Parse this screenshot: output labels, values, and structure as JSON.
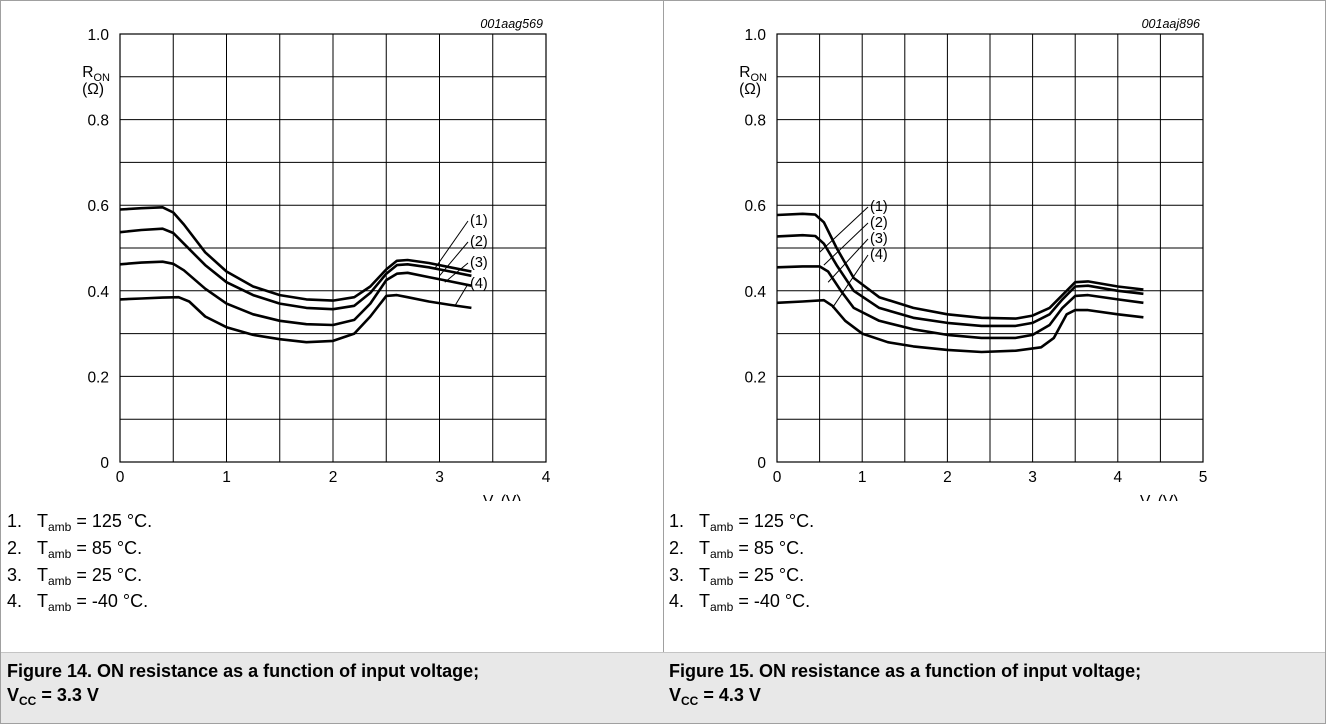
{
  "chart_data": [
    {
      "type": "line",
      "figure_code": "001aag569",
      "ylabel": "R",
      "ylabel_sub": "ON",
      "ylabel_unit": "(Ω)",
      "xlabel": "V",
      "xlabel_sub": "I",
      "xlabel_unit": "(V)",
      "xlim": [
        0,
        4
      ],
      "ylim": [
        0,
        1.0
      ],
      "xticks": [
        "0",
        "1",
        "2",
        "3",
        "4"
      ],
      "yticks": [
        "0",
        "0.2",
        "0.4",
        "0.6",
        "0.8",
        "1.0"
      ],
      "grid": true,
      "series": [
        {
          "name": "(1)",
          "points": [
            [
              0,
              0.59
            ],
            [
              0.2,
              0.593
            ],
            [
              0.4,
              0.595
            ],
            [
              0.5,
              0.583
            ],
            [
              0.6,
              0.555
            ],
            [
              0.8,
              0.49
            ],
            [
              1.0,
              0.445
            ],
            [
              1.25,
              0.41
            ],
            [
              1.5,
              0.39
            ],
            [
              1.75,
              0.38
            ],
            [
              2.0,
              0.377
            ],
            [
              2.2,
              0.385
            ],
            [
              2.35,
              0.41
            ],
            [
              2.5,
              0.45
            ],
            [
              2.6,
              0.47
            ],
            [
              2.7,
              0.472
            ],
            [
              2.9,
              0.465
            ],
            [
              3.1,
              0.455
            ],
            [
              3.3,
              0.445
            ]
          ]
        },
        {
          "name": "(2)",
          "points": [
            [
              0,
              0.537
            ],
            [
              0.2,
              0.542
            ],
            [
              0.4,
              0.545
            ],
            [
              0.5,
              0.535
            ],
            [
              0.6,
              0.51
            ],
            [
              0.8,
              0.46
            ],
            [
              1.0,
              0.42
            ],
            [
              1.25,
              0.39
            ],
            [
              1.5,
              0.37
            ],
            [
              1.75,
              0.36
            ],
            [
              2.0,
              0.357
            ],
            [
              2.2,
              0.365
            ],
            [
              2.35,
              0.395
            ],
            [
              2.5,
              0.44
            ],
            [
              2.6,
              0.46
            ],
            [
              2.7,
              0.462
            ],
            [
              2.9,
              0.455
            ],
            [
              3.1,
              0.445
            ],
            [
              3.3,
              0.435
            ]
          ]
        },
        {
          "name": "(3)",
          "points": [
            [
              0,
              0.462
            ],
            [
              0.2,
              0.466
            ],
            [
              0.4,
              0.468
            ],
            [
              0.5,
              0.463
            ],
            [
              0.6,
              0.448
            ],
            [
              0.8,
              0.405
            ],
            [
              1.0,
              0.37
            ],
            [
              1.25,
              0.345
            ],
            [
              1.5,
              0.33
            ],
            [
              1.75,
              0.322
            ],
            [
              2.0,
              0.32
            ],
            [
              2.2,
              0.332
            ],
            [
              2.35,
              0.37
            ],
            [
              2.5,
              0.425
            ],
            [
              2.6,
              0.44
            ],
            [
              2.7,
              0.442
            ],
            [
              2.9,
              0.432
            ],
            [
              3.1,
              0.422
            ],
            [
              3.3,
              0.412
            ]
          ]
        },
        {
          "name": "(4)",
          "points": [
            [
              0,
              0.38
            ],
            [
              0.2,
              0.382
            ],
            [
              0.4,
              0.384
            ],
            [
              0.55,
              0.385
            ],
            [
              0.65,
              0.375
            ],
            [
              0.8,
              0.34
            ],
            [
              1.0,
              0.315
            ],
            [
              1.25,
              0.297
            ],
            [
              1.5,
              0.287
            ],
            [
              1.75,
              0.28
            ],
            [
              2.0,
              0.283
            ],
            [
              2.2,
              0.3
            ],
            [
              2.35,
              0.34
            ],
            [
              2.5,
              0.388
            ],
            [
              2.6,
              0.39
            ],
            [
              2.7,
              0.385
            ],
            [
              2.9,
              0.375
            ],
            [
              3.1,
              0.367
            ],
            [
              3.3,
              0.36
            ]
          ]
        }
      ],
      "labels": [
        {
          "text": "(1)",
          "tip": [
            2.95,
            0.45
          ]
        },
        {
          "text": "(2)",
          "tip": [
            3.0,
            0.435
          ]
        },
        {
          "text": "(3)",
          "tip": [
            3.05,
            0.42
          ]
        },
        {
          "text": "(4)",
          "tip": [
            3.15,
            0.367
          ]
        }
      ],
      "notes": [
        {
          "num": "1.",
          "pre": "T",
          "sub": "amb",
          "post": " = 125 °C."
        },
        {
          "num": "2.",
          "pre": "T",
          "sub": "amb",
          "post": " = 85 °C."
        },
        {
          "num": "3.",
          "pre": "T",
          "sub": "amb",
          "post": " = 25 °C."
        },
        {
          "num": "4.",
          "pre": "T",
          "sub": "amb",
          "post": " = -40 °C."
        }
      ],
      "caption": {
        "line1": "Figure 14.  ON resistance as a function of input voltage;",
        "pre": "V",
        "sub": "CC",
        "post": " = 3.3 V"
      }
    },
    {
      "type": "line",
      "figure_code": "001aaj896",
      "ylabel": "R",
      "ylabel_sub": "ON",
      "ylabel_unit": "(Ω)",
      "xlabel": "V",
      "xlabel_sub": "I",
      "xlabel_unit": "(V)",
      "xlim": [
        0,
        5
      ],
      "ylim": [
        0,
        1.0
      ],
      "xticks": [
        "0",
        "1",
        "2",
        "3",
        "4",
        "5"
      ],
      "yticks": [
        "0",
        "0.2",
        "0.4",
        "0.6",
        "0.8",
        "1.0"
      ],
      "grid": true,
      "series": [
        {
          "name": "(1)",
          "points": [
            [
              0,
              0.577
            ],
            [
              0.3,
              0.58
            ],
            [
              0.45,
              0.578
            ],
            [
              0.55,
              0.56
            ],
            [
              0.7,
              0.5
            ],
            [
              0.9,
              0.43
            ],
            [
              1.2,
              0.385
            ],
            [
              1.6,
              0.36
            ],
            [
              2.0,
              0.345
            ],
            [
              2.4,
              0.337
            ],
            [
              2.8,
              0.335
            ],
            [
              3.0,
              0.342
            ],
            [
              3.2,
              0.36
            ],
            [
              3.35,
              0.39
            ],
            [
              3.5,
              0.42
            ],
            [
              3.65,
              0.422
            ],
            [
              4.0,
              0.41
            ],
            [
              4.3,
              0.403
            ]
          ]
        },
        {
          "name": "(2)",
          "points": [
            [
              0,
              0.527
            ],
            [
              0.3,
              0.53
            ],
            [
              0.45,
              0.528
            ],
            [
              0.55,
              0.51
            ],
            [
              0.7,
              0.46
            ],
            [
              0.9,
              0.4
            ],
            [
              1.2,
              0.36
            ],
            [
              1.6,
              0.337
            ],
            [
              2.0,
              0.325
            ],
            [
              2.4,
              0.318
            ],
            [
              2.8,
              0.318
            ],
            [
              3.0,
              0.325
            ],
            [
              3.2,
              0.345
            ],
            [
              3.35,
              0.38
            ],
            [
              3.5,
              0.41
            ],
            [
              3.65,
              0.412
            ],
            [
              4.0,
              0.4
            ],
            [
              4.3,
              0.393
            ]
          ]
        },
        {
          "name": "(3)",
          "points": [
            [
              0,
              0.455
            ],
            [
              0.3,
              0.457
            ],
            [
              0.5,
              0.457
            ],
            [
              0.6,
              0.445
            ],
            [
              0.75,
              0.4
            ],
            [
              0.9,
              0.36
            ],
            [
              1.2,
              0.33
            ],
            [
              1.6,
              0.31
            ],
            [
              2.0,
              0.297
            ],
            [
              2.4,
              0.29
            ],
            [
              2.8,
              0.29
            ],
            [
              3.0,
              0.297
            ],
            [
              3.2,
              0.32
            ],
            [
              3.35,
              0.36
            ],
            [
              3.5,
              0.388
            ],
            [
              3.65,
              0.39
            ],
            [
              4.0,
              0.38
            ],
            [
              4.3,
              0.372
            ]
          ]
        },
        {
          "name": "(4)",
          "points": [
            [
              0,
              0.372
            ],
            [
              0.3,
              0.375
            ],
            [
              0.55,
              0.378
            ],
            [
              0.65,
              0.365
            ],
            [
              0.8,
              0.33
            ],
            [
              1.0,
              0.3
            ],
            [
              1.3,
              0.28
            ],
            [
              1.6,
              0.27
            ],
            [
              2.0,
              0.262
            ],
            [
              2.4,
              0.257
            ],
            [
              2.8,
              0.26
            ],
            [
              3.1,
              0.268
            ],
            [
              3.25,
              0.29
            ],
            [
              3.4,
              0.345
            ],
            [
              3.5,
              0.355
            ],
            [
              3.65,
              0.355
            ],
            [
              4.0,
              0.345
            ],
            [
              4.3,
              0.338
            ]
          ]
        }
      ],
      "labels": [
        {
          "text": "(1)",
          "tip": [
            0.5,
            0.49
          ]
        },
        {
          "text": "(2)",
          "tip": [
            0.55,
            0.46
          ]
        },
        {
          "text": "(3)",
          "tip": [
            0.6,
            0.42
          ]
        },
        {
          "text": "(4)",
          "tip": [
            0.65,
            0.36
          ]
        }
      ],
      "notes": [
        {
          "num": "1.",
          "pre": "T",
          "sub": "amb",
          "post": " = 125 °C."
        },
        {
          "num": "2.",
          "pre": "T",
          "sub": "amb",
          "post": " = 85 °C."
        },
        {
          "num": "3.",
          "pre": "T",
          "sub": "amb",
          "post": " = 25 °C."
        },
        {
          "num": "4.",
          "pre": "T",
          "sub": "amb",
          "post": " = -40 °C."
        }
      ],
      "caption": {
        "line1": "Figure 15.  ON resistance as a function of input voltage;",
        "pre": "V",
        "sub": "CC",
        "post": " = 4.3 V"
      }
    }
  ]
}
